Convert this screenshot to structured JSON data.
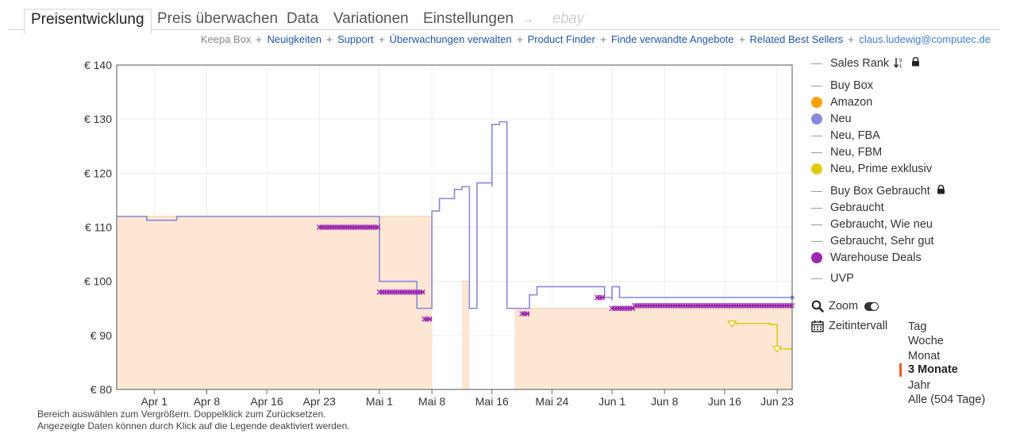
{
  "tabs": [
    {
      "label": "Preisentwicklung",
      "active": true
    },
    {
      "label": "Preis überwachen"
    },
    {
      "label": "Data"
    },
    {
      "label": "Variationen"
    },
    {
      "label": "Einstellungen"
    },
    {
      "label": "→"
    },
    {
      "label": "ebay"
    }
  ],
  "subnav": {
    "box": "Keepa Box",
    "links": [
      "Neuigkeiten",
      "Support",
      "Überwachungen verwalten",
      "Product Finder",
      "Finde verwandte Angebote",
      "Related Best Sellers"
    ],
    "email": "claus.ludewig@computec.de"
  },
  "legend": [
    {
      "label": "Sales Rank",
      "kind": "line",
      "icons": [
        "sort-icon",
        "lock-icon"
      ]
    },
    {
      "label": "Buy Box",
      "kind": "line"
    },
    {
      "label": "Amazon",
      "kind": "dot",
      "color": "#ff9f00"
    },
    {
      "label": "Neu",
      "kind": "dot",
      "color": "#8888dd"
    },
    {
      "label": "Neu, FBA",
      "kind": "line"
    },
    {
      "label": "Neu, FBM",
      "kind": "line"
    },
    {
      "label": "Neu, Prime exklusiv",
      "kind": "dot",
      "color": "#ddcc11"
    },
    {
      "label": "Buy Box Gebraucht",
      "kind": "line",
      "icons": [
        "lock-icon"
      ]
    },
    {
      "label": "Gebraucht",
      "kind": "line"
    },
    {
      "label": "Gebraucht, Wie neu",
      "kind": "line"
    },
    {
      "label": "Gebraucht, Sehr gut",
      "kind": "line"
    },
    {
      "label": "Warehouse Deals",
      "kind": "dot",
      "color": "#9c27b0"
    },
    {
      "label": "UVP",
      "kind": "line"
    }
  ],
  "controls": {
    "zoom": "Zoom",
    "interval": "Zeitintervall",
    "ranges": [
      "Tag",
      "Woche",
      "Monat",
      "3 Monate",
      "Jahr",
      "Alle (504 Tage)"
    ],
    "selected": "3 Monate"
  },
  "hints": [
    "Bereich auswählen zum Vergrößern. Doppelklick zum Zurücksetzen.",
    "Angezeigte Daten können durch Klick auf die Legende deaktiviert werden."
  ],
  "chart_data": {
    "type": "line",
    "title": "",
    "xlabel": "",
    "ylabel": "",
    "x_type": "date",
    "xlim": [
      "2024-03-27",
      "2024-06-25"
    ],
    "ylim": [
      80,
      140
    ],
    "y_ticks": [
      80,
      90,
      100,
      110,
      120,
      130,
      140
    ],
    "y_tick_labels": [
      "€ 80",
      "€ 90",
      "€ 100",
      "€ 110",
      "€ 120",
      "€ 130",
      "€ 140"
    ],
    "x_ticks": [
      {
        "date": "2024-04-01",
        "label": "Apr 1"
      },
      {
        "date": "2024-04-08",
        "label": "Apr 8"
      },
      {
        "date": "2024-04-16",
        "label": "Apr 16"
      },
      {
        "date": "2024-04-23",
        "label": "Apr 23"
      },
      {
        "date": "2024-05-01",
        "label": "Mai 1"
      },
      {
        "date": "2024-05-08",
        "label": "Mai 8"
      },
      {
        "date": "2024-05-16",
        "label": "Mai 16"
      },
      {
        "date": "2024-05-24",
        "label": "Mai 24"
      },
      {
        "date": "2024-06-01",
        "label": "Jun 1"
      },
      {
        "date": "2024-06-08",
        "label": "Jun 8"
      },
      {
        "date": "2024-06-16",
        "label": "Jun 16"
      },
      {
        "date": "2024-06-23",
        "label": "Jun 23"
      }
    ],
    "grid": true,
    "legend_position": "right",
    "series": [
      {
        "name": "Amazon",
        "color": "#ff9f00",
        "fill": true,
        "segments": [
          [
            [
              "2024-03-27",
              112
            ],
            [
              "2024-05-08",
              112
            ]
          ],
          [
            [
              "2024-05-12",
              100
            ],
            [
              "2024-05-13",
              100
            ]
          ],
          [
            [
              "2024-05-19",
              95
            ],
            [
              "2024-06-25",
              95
            ]
          ]
        ]
      },
      {
        "name": "Neu",
        "color": "#8888dd",
        "step": true,
        "points": [
          [
            "2024-03-27",
            112
          ],
          [
            "2024-03-31",
            111.3
          ],
          [
            "2024-04-04",
            112
          ],
          [
            "2024-04-30",
            112
          ],
          [
            "2024-05-01",
            100
          ],
          [
            "2024-05-06",
            100
          ],
          [
            "2024-05-06",
            95
          ],
          [
            "2024-05-08",
            95
          ],
          [
            "2024-05-08",
            113
          ],
          [
            "2024-05-09",
            115.3
          ],
          [
            "2024-05-11",
            115.5
          ],
          [
            "2024-05-11",
            117
          ],
          [
            "2024-05-12",
            117.5
          ],
          [
            "2024-05-13",
            117.6
          ],
          [
            "2024-05-13",
            95
          ],
          [
            "2024-05-14",
            118
          ],
          [
            "2024-05-14",
            95
          ],
          [
            "2024-05-14",
            118.2
          ],
          [
            "2024-05-16",
            117.5
          ],
          [
            "2024-05-16",
            129
          ],
          [
            "2024-05-17",
            129.5
          ],
          [
            "2024-05-18",
            124.5
          ],
          [
            "2024-05-18",
            95
          ],
          [
            "2024-05-21",
            95
          ],
          [
            "2024-05-21",
            97.5
          ],
          [
            "2024-05-22",
            99
          ],
          [
            "2024-05-31",
            99
          ],
          [
            "2024-05-31",
            97
          ],
          [
            "2024-06-01",
            96.5
          ],
          [
            "2024-06-01",
            99
          ],
          [
            "2024-06-02",
            97
          ],
          [
            "2024-06-25",
            97
          ]
        ]
      },
      {
        "name": "Neu, Prime exklusiv",
        "color": "#ddcc11",
        "step": true,
        "points": [
          [
            "2024-06-17",
            92.2
          ],
          [
            "2024-06-22",
            92
          ],
          [
            "2024-06-23",
            87.5
          ],
          [
            "2024-06-25",
            87.5
          ]
        ]
      },
      {
        "name": "Warehouse Deals",
        "color": "#9c27b0",
        "marker": "x",
        "segments": [
          [
            [
              "2024-04-23",
              110
            ],
            [
              "2024-05-01",
              110
            ]
          ],
          [
            [
              "2024-05-01",
              98
            ],
            [
              "2024-05-07",
              98
            ]
          ],
          [
            [
              "2024-05-07",
              93
            ],
            [
              "2024-05-08",
              93
            ]
          ],
          [
            [
              "2024-05-20",
              94
            ],
            [
              "2024-05-21",
              94
            ]
          ],
          [
            [
              "2024-05-30",
              97
            ],
            [
              "2024-05-31",
              97
            ]
          ],
          [
            [
              "2024-06-01",
              95
            ],
            [
              "2024-06-04",
              95
            ]
          ],
          [
            [
              "2024-06-04",
              95.5
            ],
            [
              "2024-06-25",
              95.5
            ]
          ]
        ]
      }
    ]
  }
}
